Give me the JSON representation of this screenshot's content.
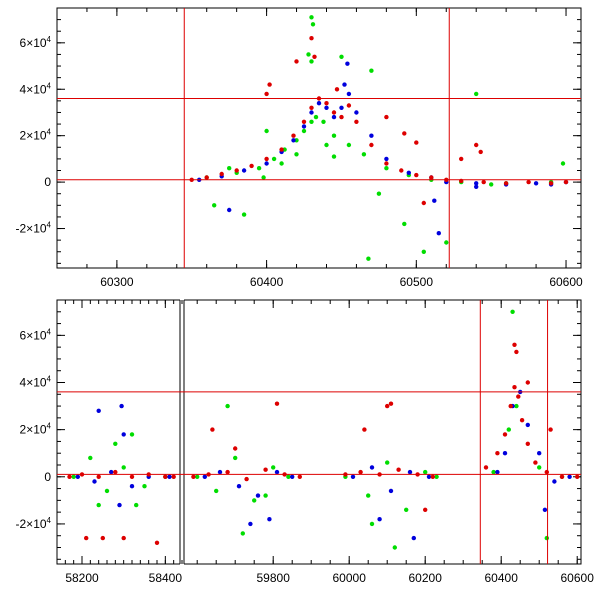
{
  "chart_data": [
    {
      "type": "scatter",
      "panel": "top",
      "title": "",
      "xlabel": "",
      "ylabel": "",
      "xlim": [
        60260,
        60610
      ],
      "ylim": [
        -37000,
        75000
      ],
      "x_ticks": [
        {
          "value": 60300,
          "label": "60300"
        },
        {
          "value": 60400,
          "label": "60400"
        },
        {
          "value": 60500,
          "label": "60500"
        },
        {
          "value": 60600,
          "label": "60600"
        }
      ],
      "y_ticks": [
        {
          "value": -20000,
          "label": "-2×10⁴"
        },
        {
          "value": 0,
          "label": "0"
        },
        {
          "value": 20000,
          "label": "2×10⁴"
        },
        {
          "value": 40000,
          "label": "4×10⁴"
        },
        {
          "value": 60000,
          "label": "6×10⁴"
        }
      ],
      "reference_lines": {
        "horizontal": [
          1000,
          36000
        ],
        "vertical": [
          60345,
          60522
        ],
        "color": "#dd0000"
      },
      "series": [
        {
          "color": "#00dd00",
          "x": [
            60360,
            60380,
            60395,
            60405,
            60412,
            60420,
            60425,
            60430,
            60433,
            60438,
            60445,
            60455,
            60465,
            60480,
            60495,
            60510,
            60530,
            60560,
            60590,
            60365,
            60385,
            60400,
            60428,
            60450,
            60470,
            60492,
            60520,
            60540,
            60375,
            60398,
            60430,
            60431,
            60430,
            60440,
            60468,
            60505,
            60550,
            60598,
            60410,
            60420,
            60445,
            60475
          ],
          "y": [
            2000,
            4000,
            6000,
            10000,
            14000,
            18000,
            22000,
            26000,
            28000,
            26000,
            20000,
            16000,
            12000,
            6000,
            3000,
            1000,
            0,
            -500,
            0,
            -10000,
            -14000,
            22000,
            55000,
            54000,
            48000,
            -18000,
            -26000,
            38000,
            6000,
            2000,
            71000,
            68000,
            52000,
            16000,
            -33000,
            -30000,
            -1000,
            8000,
            8000,
            12000,
            11000,
            -5000
          ]
        },
        {
          "color": "#0000dd",
          "x": [
            60355,
            60370,
            60385,
            60400,
            60410,
            60418,
            60425,
            60430,
            60435,
            60440,
            60445,
            60450,
            60455,
            60460,
            60470,
            60480,
            60495,
            60510,
            60520,
            60540,
            60560,
            60580,
            60600,
            60375,
            60452,
            60454,
            60512,
            60515,
            60540,
            60590
          ],
          "y": [
            1000,
            2500,
            5000,
            8000,
            13000,
            18000,
            24000,
            30000,
            34000,
            32000,
            28000,
            32000,
            38000,
            30000,
            20000,
            10000,
            4000,
            2000,
            0,
            -500,
            -1000,
            -500,
            0,
            -12000,
            42000,
            51000,
            -8000,
            -22000,
            -2000,
            -1000
          ]
        },
        {
          "color": "#dd0000",
          "x": [
            60350,
            60360,
            60370,
            60380,
            60390,
            60400,
            60410,
            60418,
            60425,
            60430,
            60435,
            60440,
            60445,
            60450,
            60455,
            60460,
            60470,
            60480,
            60490,
            60500,
            60510,
            60520,
            60530,
            60545,
            60560,
            60575,
            60590,
            60600,
            60400,
            60402,
            60430,
            60432,
            60447,
            60480,
            60492,
            60500,
            60530,
            60540,
            60543,
            60505,
            60420
          ],
          "y": [
            1000,
            2000,
            3500,
            5000,
            7000,
            10000,
            14000,
            20000,
            26000,
            32000,
            36000,
            34000,
            30000,
            28000,
            33000,
            26000,
            16000,
            8000,
            5000,
            3000,
            2000,
            1000,
            500,
            0,
            -500,
            0,
            -500,
            0,
            38000,
            42000,
            62000,
            54000,
            40000,
            28000,
            21000,
            17000,
            10000,
            16000,
            13000,
            -9000,
            52000
          ]
        }
      ]
    },
    {
      "type": "scatter",
      "panel": "bottom",
      "title": "",
      "xlabel": "",
      "ylabel": "",
      "broken_x_axis": true,
      "segments": [
        {
          "xlim": [
            58140,
            58440
          ]
        },
        {
          "xlim": [
            59560,
            60610
          ]
        }
      ],
      "ylim": [
        -37000,
        75000
      ],
      "x_ticks": [
        {
          "value": 58200,
          "label": "58200"
        },
        {
          "value": 58400,
          "label": "58400"
        },
        {
          "value": 59800,
          "label": "59800"
        },
        {
          "value": 60000,
          "label": "60000"
        },
        {
          "value": 60200,
          "label": "60200"
        },
        {
          "value": 60400,
          "label": "60400"
        },
        {
          "value": 60600,
          "label": "60600"
        }
      ],
      "y_ticks": [
        {
          "value": -20000,
          "label": "-2×10⁴"
        },
        {
          "value": 0,
          "label": "0"
        },
        {
          "value": 20000,
          "label": "2×10⁴"
        },
        {
          "value": 40000,
          "label": "4×10⁴"
        },
        {
          "value": 60000,
          "label": "6×10⁴"
        }
      ],
      "reference_lines": {
        "horizontal": [
          1000,
          36000
        ],
        "vertical": [
          60345,
          60522
        ],
        "color": "#dd0000"
      },
      "series": [
        {
          "color": "#00dd00",
          "x": [
            58180,
            58220,
            58260,
            58280,
            58300,
            58320,
            58350,
            58400,
            58240,
            58330,
            59600,
            59650,
            59700,
            59750,
            59800,
            59840,
            59680,
            59720,
            59780,
            59990,
            60050,
            60100,
            60150,
            60200,
            60230,
            60060,
            60120,
            60380,
            60420,
            60440,
            60500,
            60560,
            60430,
            60520
          ],
          "y": [
            0,
            8000,
            -6000,
            14000,
            4000,
            18000,
            -4000,
            0,
            -12000,
            -12000,
            0,
            -6000,
            8000,
            -10000,
            4000,
            0,
            30000,
            -24000,
            -8000,
            0,
            -8000,
            6000,
            -14000,
            2000,
            0,
            -20000,
            -30000,
            2000,
            20000,
            30000,
            4000,
            0,
            70000,
            -26000
          ]
        },
        {
          "color": "#0000dd",
          "x": [
            58190,
            58230,
            58270,
            58295,
            58300,
            58320,
            58360,
            58410,
            58240,
            58290,
            59620,
            59660,
            59710,
            59760,
            59810,
            59850,
            59740,
            59790,
            60010,
            60060,
            60110,
            60160,
            60210,
            60080,
            60170,
            60390,
            60410,
            60430,
            60450,
            60470,
            60500,
            60540,
            60580,
            60515
          ],
          "y": [
            0,
            -2000,
            2000,
            30000,
            18000,
            -4000,
            0,
            0,
            28000,
            -12000,
            0,
            2000,
            -4000,
            -8000,
            2000,
            0,
            -20000,
            -18000,
            0,
            4000,
            -6000,
            2000,
            0,
            -18000,
            -26000,
            2000,
            10000,
            30000,
            36000,
            22000,
            10000,
            -2000,
            0,
            -14000
          ]
        },
        {
          "color": "#dd0000",
          "x": [
            58170,
            58200,
            58240,
            58280,
            58320,
            58360,
            58400,
            58420,
            58210,
            58250,
            58300,
            58380,
            59590,
            59630,
            59680,
            59730,
            59780,
            59830,
            59870,
            59640,
            59700,
            59810,
            59990,
            60030,
            60080,
            60130,
            60180,
            60220,
            60040,
            60100,
            60110,
            60200,
            60360,
            60390,
            60410,
            60425,
            60435,
            60445,
            60455,
            60470,
            60490,
            60520,
            60560,
            60600,
            60435,
            60440,
            60470,
            60530
          ],
          "y": [
            0,
            1000,
            0,
            2000,
            0,
            1000,
            0,
            0,
            -26000,
            -26000,
            -26000,
            -28000,
            0,
            1000,
            2000,
            -1000,
            3000,
            1000,
            0,
            20000,
            12000,
            31000,
            1000,
            2000,
            1000,
            3000,
            1000,
            0,
            20000,
            30000,
            31000,
            -14000,
            4000,
            10000,
            18000,
            30000,
            38000,
            34000,
            24000,
            14000,
            6000,
            2000,
            0,
            0,
            56000,
            53000,
            40000,
            20000
          ]
        }
      ]
    }
  ]
}
